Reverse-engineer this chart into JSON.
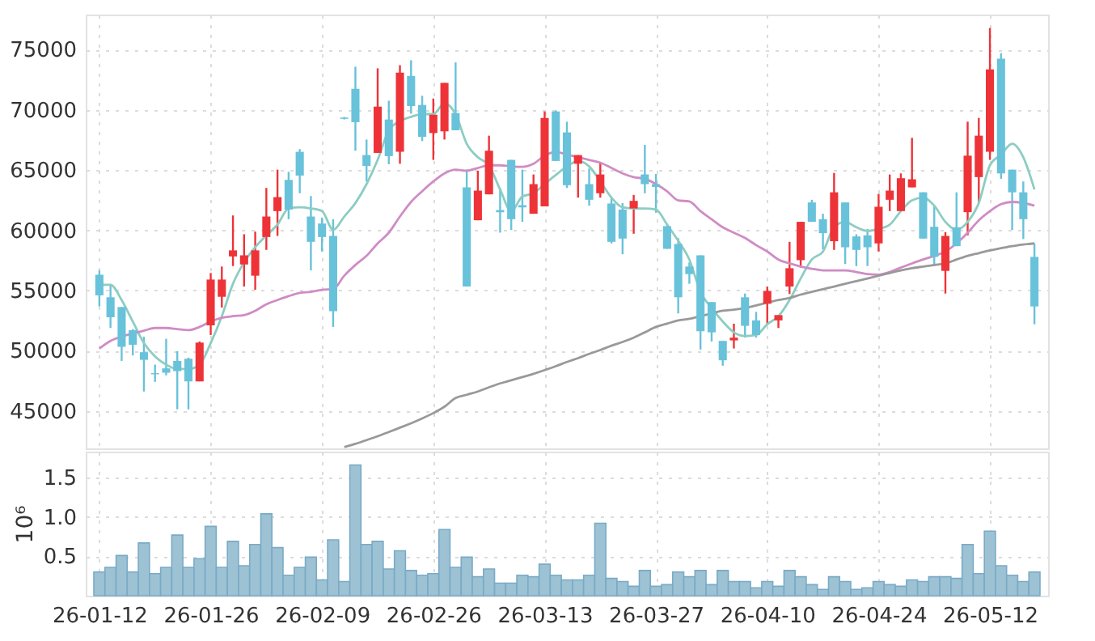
{
  "chart_data": [
    {
      "type": "candlestick",
      "tick_labels": "y",
      "grid": true,
      "ylim": [
        41900,
        77900
      ],
      "yticks": [
        45000,
        50000,
        55000,
        60000,
        65000,
        70000,
        75000
      ],
      "ohlc": [
        [
          56310,
          56670,
          53680,
          54600
        ],
        [
          54440,
          55470,
          51890,
          52780
        ],
        [
          53630,
          53630,
          49160,
          50330
        ],
        [
          51710,
          51800,
          49610,
          50500
        ],
        [
          49880,
          51170,
          46620,
          49250
        ],
        [
          48140,
          48850,
          47420,
          48050
        ],
        [
          48540,
          50990,
          47960,
          48180
        ],
        [
          49160,
          49970,
          45140,
          48310
        ],
        [
          49340,
          49430,
          45140,
          47460
        ],
        [
          47460,
          50770,
          47460,
          50680
        ],
        [
          52110,
          56450,
          51310,
          55910
        ],
        [
          54480,
          56990,
          53590,
          55910
        ],
        [
          57830,
          61230,
          57030,
          58330
        ],
        [
          57160,
          59670,
          55330,
          57920
        ],
        [
          56230,
          59890,
          55060,
          58330
        ],
        [
          59440,
          63510,
          58370,
          61140
        ],
        [
          61590,
          65030,
          59530,
          62750
        ],
        [
          64180,
          64850,
          60920,
          61720
        ],
        [
          66510,
          66730,
          63070,
          64540
        ],
        [
          61140,
          62840,
          56670,
          59040
        ],
        [
          60560,
          61050,
          58240,
          59440
        ],
        [
          59530,
          60920,
          51980,
          53280
        ],
        [
          69350,
          69400,
          69200,
          69250
        ],
        [
          71740,
          73570,
          66600,
          68970
        ],
        [
          66240,
          67530,
          64050,
          65340
        ],
        [
          66420,
          73440,
          66420,
          70260
        ],
        [
          69190,
          70750,
          65480,
          66150
        ],
        [
          66510,
          73700,
          65520,
          73080
        ],
        [
          72810,
          74110,
          69680,
          70310
        ],
        [
          70400,
          71160,
          67400,
          67760
        ],
        [
          68070,
          70930,
          65840,
          69590
        ],
        [
          68210,
          72230,
          67530,
          72230
        ],
        [
          69730,
          73930,
          68300,
          68300
        ],
        [
          63560,
          65030,
          55330,
          55330
        ],
        [
          60830,
          64940,
          60830,
          63290
        ],
        [
          62980,
          67850,
          62980,
          66600
        ],
        [
          61680,
          63510,
          59800,
          61500
        ],
        [
          65840,
          65840,
          60020,
          60920
        ],
        [
          62080,
          65030,
          60700,
          61900
        ],
        [
          61370,
          64630,
          61370,
          63830
        ],
        [
          61990,
          69860,
          61990,
          69320
        ],
        [
          69860,
          69950,
          65750,
          65750
        ],
        [
          68120,
          69010,
          63510,
          63740
        ],
        [
          65520,
          66240,
          62710,
          66240
        ],
        [
          63830,
          65120,
          62040,
          62530
        ],
        [
          63070,
          65610,
          62710,
          64630
        ],
        [
          62220,
          62710,
          58910,
          59040
        ],
        [
          61720,
          62260,
          58010,
          59310
        ],
        [
          61810,
          62930,
          59710,
          62440
        ],
        [
          64630,
          67090,
          63070,
          63830
        ],
        [
          63830,
          64670,
          61460,
          63600
        ],
        [
          60340,
          60560,
          58460,
          58460
        ],
        [
          58860,
          59350,
          53100,
          54440
        ],
        [
          56990,
          57340,
          55560,
          56360
        ],
        [
          57920,
          57920,
          50100,
          51620
        ],
        [
          54040,
          54040,
          50770,
          51530
        ],
        [
          50820,
          50820,
          48760,
          49210
        ],
        [
          50860,
          52250,
          50190,
          51090
        ],
        [
          54440,
          54750,
          51090,
          52070
        ],
        [
          52520,
          53230,
          51090,
          51310
        ],
        [
          53900,
          55330,
          52200,
          54970
        ],
        [
          52520,
          52960,
          51890,
          52960
        ],
        [
          55330,
          59040,
          54710,
          56850
        ],
        [
          57520,
          60700,
          56900,
          60700
        ],
        [
          62310,
          62530,
          60700,
          60700
        ],
        [
          60920,
          61370,
          58420,
          59760
        ],
        [
          59090,
          64760,
          58370,
          63150
        ],
        [
          62310,
          62310,
          57210,
          58590
        ],
        [
          59490,
          59670,
          57030,
          58370
        ],
        [
          59580,
          60110,
          57030,
          58590
        ],
        [
          58910,
          63020,
          58240,
          61950
        ],
        [
          62530,
          64630,
          61590,
          63290
        ],
        [
          61590,
          64720,
          61590,
          64320
        ],
        [
          63560,
          67670,
          63560,
          64230
        ],
        [
          63150,
          63150,
          59310,
          59310
        ],
        [
          60290,
          62080,
          57030,
          57790
        ],
        [
          56630,
          59850,
          54750,
          59530
        ],
        [
          60250,
          63150,
          58680,
          58680
        ],
        [
          61500,
          69010,
          59580,
          66190
        ],
        [
          64410,
          69320,
          62260,
          67850
        ],
        [
          66510,
          76790,
          65840,
          73350
        ],
        [
          74240,
          74690,
          64270,
          64720
        ],
        [
          65030,
          65030,
          60020,
          63150
        ],
        [
          63150,
          64050,
          59270,
          60920
        ],
        [
          57790,
          58910,
          52200,
          53680
        ]
      ],
      "colors": [
        "#68c2da",
        "#68c2da",
        "#68c2da",
        "#68c2da",
        "#68c2da",
        "#68c2da",
        "#68c2da",
        "#68c2da",
        "#68c2da",
        "#ee3338",
        "#ee3338",
        "#ee3338",
        "#ee3338",
        "#ee3338",
        "#ee3338",
        "#ee3338",
        "#ee3338",
        "#68c2da",
        "#68c2da",
        "#68c2da",
        "#68c2da",
        "#68c2da",
        "#68c2da",
        "#68c2da",
        "#68c2da",
        "#ee3338",
        "#68c2da",
        "#ee3338",
        "#68c2da",
        "#68c2da",
        "#ee3338",
        "#ee3338",
        "#68c2da",
        "#68c2da",
        "#ee3338",
        "#ee3338",
        "#68c2da",
        "#68c2da",
        "#68c2da",
        "#ee3338",
        "#ee3338",
        "#68c2da",
        "#68c2da",
        "#ee3338",
        "#68c2da",
        "#ee3338",
        "#68c2da",
        "#68c2da",
        "#ee3338",
        "#68c2da",
        "#68c2da",
        "#68c2da",
        "#68c2da",
        "#68c2da",
        "#68c2da",
        "#68c2da",
        "#68c2da",
        "#ee3338",
        "#68c2da",
        "#68c2da",
        "#ee3338",
        "#ee3338",
        "#ee3338",
        "#ee3338",
        "#68c2da",
        "#68c2da",
        "#ee3338",
        "#68c2da",
        "#68c2da",
        "#68c2da",
        "#ee3338",
        "#ee3338",
        "#ee3338",
        "#ee3338",
        "#68c2da",
        "#68c2da",
        "#ee3338",
        "#68c2da",
        "#ee3338",
        "#ee3338",
        "#ee3338",
        "#68c2da",
        "#68c2da",
        "#68c2da",
        "#68c2da"
      ],
      "series": [
        {
          "type": "line",
          "color": "#8ccdc2",
          "values": [
            55470,
            55470,
            54210,
            52430,
            50640,
            49520,
            48850,
            48490,
            48490,
            48850,
            50640,
            52870,
            55560,
            57340,
            58600,
            59580,
            60470,
            61810,
            61900,
            61810,
            61590,
            60030,
            61140,
            62260,
            63830,
            65840,
            68300,
            69060,
            69410,
            69640,
            69640,
            70530,
            69640,
            67180,
            66060,
            65390,
            63380,
            61590,
            62800,
            63070,
            63830,
            64590,
            65300,
            65750,
            65300,
            64050,
            62710,
            61900,
            61810,
            61810,
            61720,
            60470,
            59130,
            57570,
            54890,
            53540,
            52430,
            51530,
            51220,
            51310,
            52200,
            52870,
            54210,
            56000,
            57570,
            58240,
            60250,
            60700,
            60250,
            59940,
            60120,
            60470,
            61590,
            62480,
            62710,
            62040,
            60700,
            60030,
            60700,
            62260,
            65390,
            66280,
            67180,
            66060,
            63380
          ]
        },
        {
          "type": "line",
          "color": "#d08cc4",
          "values": [
            50190,
            50820,
            51180,
            51440,
            51670,
            51890,
            51890,
            51800,
            51710,
            51980,
            52430,
            52740,
            52870,
            52960,
            53320,
            53860,
            54210,
            54530,
            54800,
            54890,
            55060,
            55110,
            56230,
            57120,
            57880,
            58910,
            59800,
            61140,
            62350,
            63240,
            64050,
            64720,
            65030,
            64940,
            65170,
            65390,
            65390,
            65300,
            65260,
            65520,
            66190,
            66510,
            66280,
            66060,
            65840,
            65610,
            65170,
            64720,
            64410,
            64270,
            63830,
            63240,
            62480,
            62390,
            61590,
            60920,
            60250,
            59800,
            59360,
            58770,
            58240,
            57570,
            57250,
            56990,
            56810,
            56670,
            56670,
            56670,
            56540,
            56360,
            56320,
            56540,
            56900,
            57250,
            57570,
            57880,
            58240,
            58910,
            59800,
            60830,
            61590,
            62170,
            62350,
            62260,
            62040
          ]
        },
        {
          "type": "line",
          "color": "#999999",
          "values": [
            null,
            null,
            null,
            null,
            null,
            null,
            null,
            null,
            null,
            null,
            null,
            null,
            null,
            null,
            null,
            null,
            null,
            null,
            null,
            null,
            null,
            null,
            42010,
            42280,
            42590,
            42910,
            43260,
            43620,
            43980,
            44380,
            44830,
            45360,
            46080,
            46350,
            46620,
            46970,
            47290,
            47550,
            47820,
            48090,
            48400,
            48720,
            49070,
            49390,
            49740,
            50060,
            50420,
            50730,
            51090,
            51530,
            51980,
            52250,
            52520,
            52650,
            52870,
            53100,
            53320,
            53410,
            53540,
            53770,
            53990,
            54210,
            54390,
            54660,
            54890,
            55110,
            55330,
            55560,
            55780,
            56000,
            56230,
            56450,
            56670,
            56850,
            56990,
            57120,
            57250,
            57570,
            57880,
            58100,
            58330,
            58510,
            58680,
            58820,
            58910
          ]
        }
      ]
    },
    {
      "type": "bar",
      "grid": true,
      "ylabel": "10⁶",
      "color": "#9cc2d4",
      "ylim": [
        0,
        1.83
      ],
      "yticks": [
        0.5,
        {
          "value": 1,
          "label": "1.0"
        },
        1.5
      ],
      "categories": [
        "26-01-12",
        null,
        null,
        null,
        null,
        null,
        null,
        null,
        null,
        null,
        "26-01-26",
        null,
        null,
        null,
        null,
        null,
        null,
        null,
        null,
        null,
        "26-02-09",
        null,
        null,
        null,
        null,
        null,
        null,
        null,
        null,
        null,
        "26-02-26",
        null,
        null,
        null,
        null,
        null,
        null,
        null,
        null,
        null,
        "26-03-13",
        null,
        null,
        null,
        null,
        null,
        null,
        null,
        null,
        null,
        "26-03-27",
        null,
        null,
        null,
        null,
        null,
        null,
        null,
        null,
        null,
        "26-04-10",
        null,
        null,
        null,
        null,
        null,
        null,
        null,
        null,
        null,
        "26-04-24",
        null,
        null,
        null,
        null,
        null,
        null,
        null,
        null,
        null,
        "26-05-12",
        null,
        null,
        null,
        null
      ],
      "values": [
        0.3,
        0.36,
        0.51,
        0.3,
        0.67,
        0.28,
        0.36,
        0.77,
        0.36,
        0.47,
        0.88,
        0.36,
        0.69,
        0.38,
        0.65,
        1.04,
        0.61,
        0.26,
        0.36,
        0.49,
        0.2,
        0.71,
        0.18,
        1.66,
        0.65,
        0.69,
        0.34,
        0.57,
        0.32,
        0.26,
        0.28,
        0.84,
        0.36,
        0.49,
        0.24,
        0.34,
        0.16,
        0.16,
        0.26,
        0.24,
        0.4,
        0.26,
        0.2,
        0.2,
        0.26,
        0.92,
        0.22,
        0.18,
        0.12,
        0.32,
        0.12,
        0.14,
        0.3,
        0.24,
        0.32,
        0.14,
        0.32,
        0.18,
        0.18,
        0.1,
        0.18,
        0.12,
        0.32,
        0.24,
        0.14,
        0.08,
        0.24,
        0.18,
        0.08,
        0.1,
        0.18,
        0.14,
        0.12,
        0.2,
        0.18,
        0.24,
        0.24,
        0.22,
        0.65,
        0.28,
        0.82,
        0.38,
        0.26,
        0.18,
        0.3
      ]
    }
  ]
}
